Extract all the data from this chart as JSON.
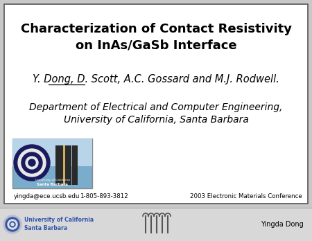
{
  "title_line1": "Characterization of Contact Resistivity",
  "title_line2": "on InAs/GaSb Interface",
  "author_underlined": "Y. Dong",
  "author_rest": ", D. Scott, A.C. Gossard and M.J. Rodwell.",
  "dept_line1": "Department of Electrical and Computer Engineering,",
  "dept_line2": "University of California, Santa Barbara",
  "email": "yingda@ece.ucsb.edu",
  "phone": "1-805-893-3812",
  "conference": "2003 Electronic Materials Conference",
  "footer_left1": "University of California",
  "footer_left2": "Santa Barbara",
  "footer_right": "Yingda Dong",
  "bg_color": "#ffffff",
  "border_color": "#555555",
  "title_color": "#000000",
  "text_color": "#000000",
  "footer_text_color": "#3355aa",
  "footer_bg_color": "#d8d8d8",
  "slide_bg": "#c8c8c8"
}
